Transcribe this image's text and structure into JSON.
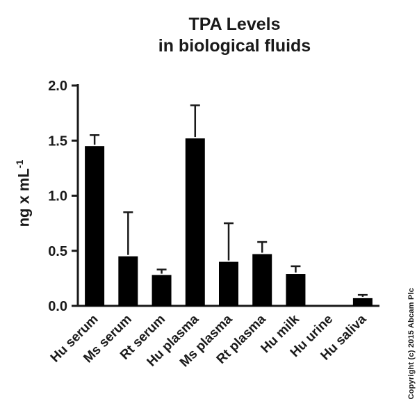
{
  "header": {
    "title_line1": "TPA Levels",
    "title_line2": "in biological fluids"
  },
  "axis": {
    "ylabel_main": "ng x mL",
    "ylabel_sup": "-1"
  },
  "footer": {
    "copyright": "Copyright (c) 2015 Abcam Plc"
  },
  "chart_data": {
    "type": "bar",
    "title": "TPA Levels in biological fluids",
    "categories": [
      "Hu serum",
      "Ms serum",
      "Rt serum",
      "Hu plasma",
      "Ms plasma",
      "Rt plasma",
      "Hu milk",
      "Hu urine",
      "Hu saliva"
    ],
    "values": [
      1.45,
      0.45,
      0.28,
      1.52,
      0.4,
      0.47,
      0.29,
      0.0,
      0.07
    ],
    "errors": [
      0.1,
      0.4,
      0.05,
      0.3,
      0.35,
      0.11,
      0.07,
      0.0,
      0.03
    ],
    "ylabel": "ng x mL⁻¹",
    "xlabel": "",
    "ylim": [
      0.0,
      2.0
    ],
    "yticks": [
      0.0,
      0.5,
      1.0,
      1.5,
      2.0
    ],
    "grid": false,
    "legend": "none",
    "bar_color": "#000000",
    "error_color": "#1a1a1a"
  }
}
